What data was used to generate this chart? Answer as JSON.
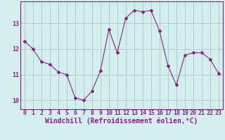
{
  "x": [
    0,
    1,
    2,
    3,
    4,
    5,
    6,
    7,
    8,
    9,
    10,
    11,
    12,
    13,
    14,
    15,
    16,
    17,
    18,
    19,
    20,
    21,
    22,
    23
  ],
  "y": [
    12.3,
    12.0,
    11.5,
    11.4,
    11.1,
    11.0,
    10.1,
    10.0,
    10.35,
    11.15,
    12.75,
    11.85,
    13.2,
    13.5,
    13.45,
    13.5,
    12.7,
    11.35,
    10.6,
    11.75,
    11.85,
    11.85,
    11.6,
    11.05
  ],
  "line_color": "#882288",
  "marker": "D",
  "marker_size": 2,
  "bg_color": "#d4eeee",
  "grid_color": "#aacccc",
  "xlabel": "Windchill (Refroidissement éolien,°C)",
  "xlabel_fontsize": 7,
  "tick_fontsize": 6,
  "ylim": [
    9.65,
    13.85
  ],
  "yticks": [
    10,
    11,
    12,
    13
  ],
  "xticks": [
    0,
    1,
    2,
    3,
    4,
    5,
    6,
    7,
    8,
    9,
    10,
    11,
    12,
    13,
    14,
    15,
    16,
    17,
    18,
    19,
    20,
    21,
    22,
    23
  ]
}
